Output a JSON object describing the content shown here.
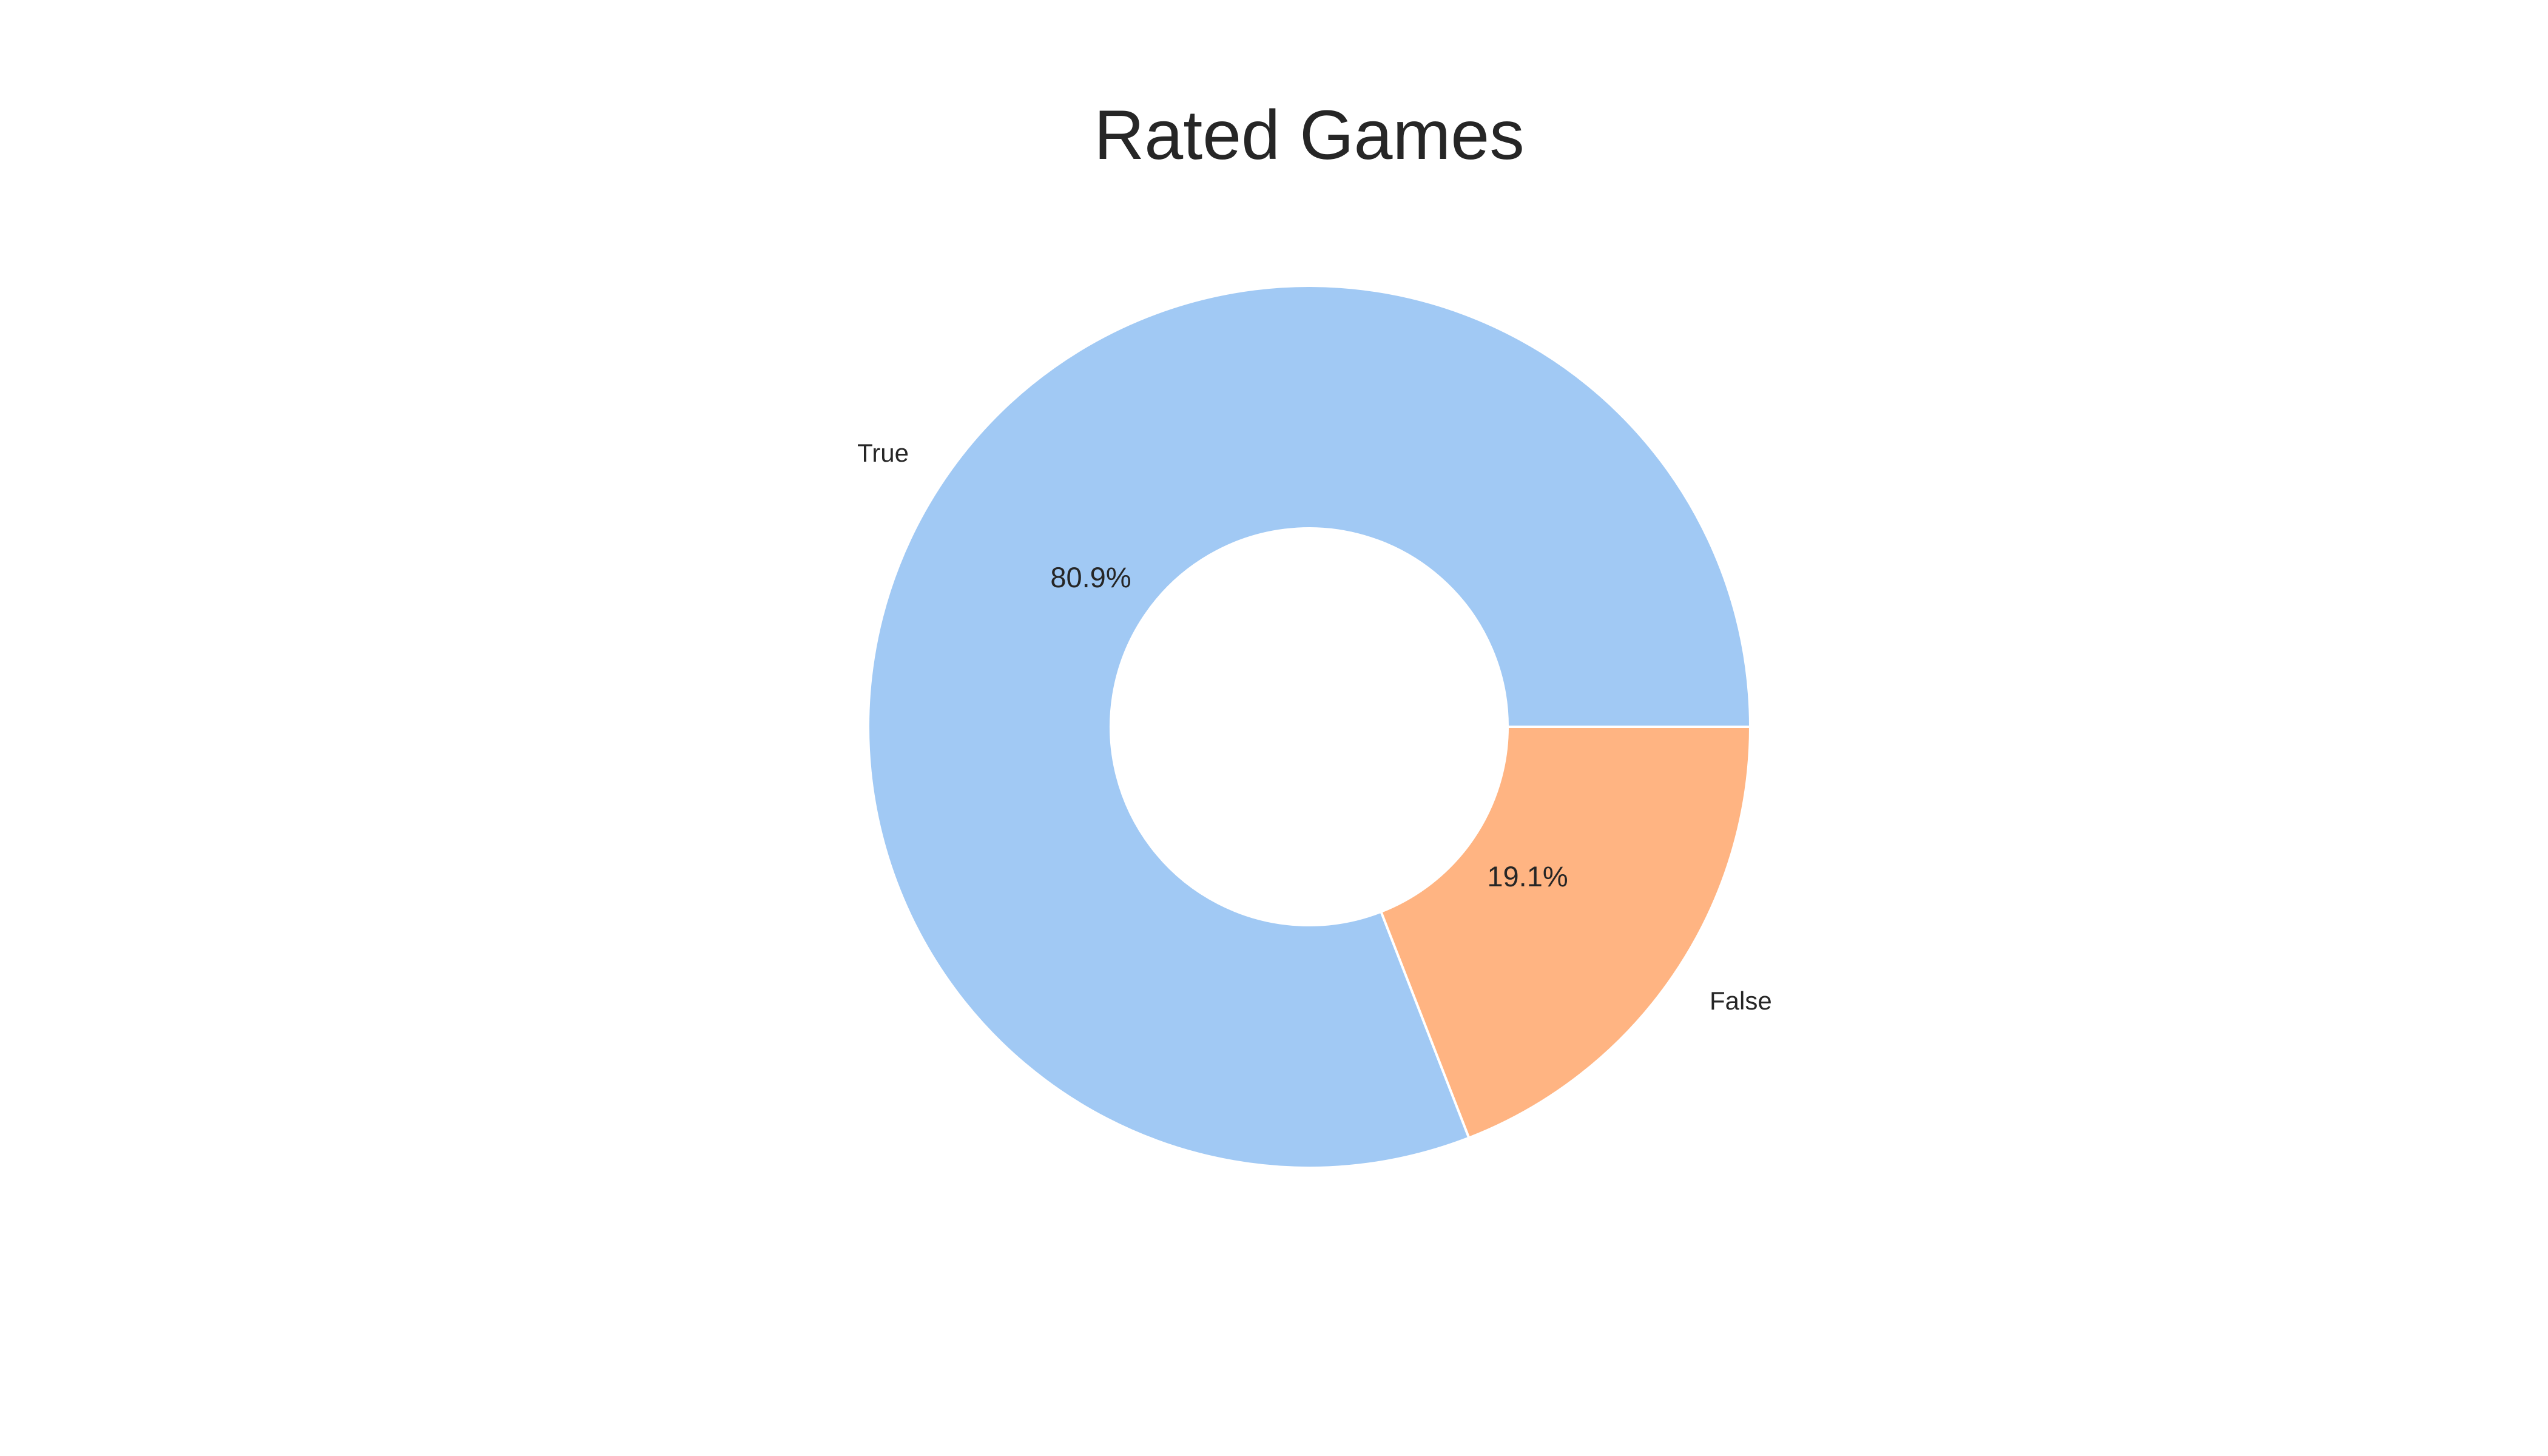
{
  "chart_data": {
    "type": "pie",
    "donut": true,
    "title": "Rated Games",
    "categories": [
      "True",
      "False"
    ],
    "values": [
      80.9,
      19.1
    ],
    "value_labels": [
      "80.9%",
      "19.1%"
    ],
    "colors": [
      "#a1c9f4",
      "#ffb482"
    ],
    "edge_color": "#ffffff",
    "start_angle_deg": 0,
    "direction": "counterclockwise",
    "legend": "none"
  }
}
